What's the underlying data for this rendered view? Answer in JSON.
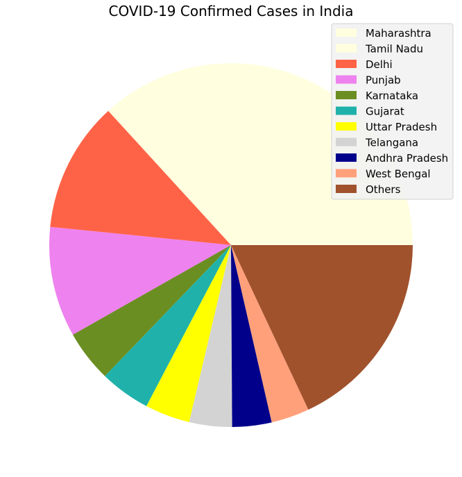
{
  "chart_data": {
    "type": "pie",
    "title": "COVID-19 Confirmed Cases in India",
    "legend_position": "top-right",
    "start_angle_deg": 0,
    "direction": "counterclockwise",
    "slices": [
      {
        "label": "Maharashtra",
        "value": 36.8,
        "color": "#FFFFE0"
      },
      {
        "label": "Tamil Nadu",
        "value": 0.0,
        "color": "#FFFFE0"
      },
      {
        "label": "Delhi",
        "value": 11.6,
        "color": "#FF6347"
      },
      {
        "label": "Punjab",
        "value": 9.8,
        "color": "#EE82EE"
      },
      {
        "label": "Karnataka",
        "value": 4.6,
        "color": "#6B8E23"
      },
      {
        "label": "Gujarat",
        "value": 4.5,
        "color": "#20B2AA"
      },
      {
        "label": "Uttar Pradesh",
        "value": 4.0,
        "color": "#FFFF00"
      },
      {
        "label": "Telangana",
        "value": 3.8,
        "color": "#D3D3D3"
      },
      {
        "label": "Andhra Pradesh",
        "value": 3.5,
        "color": "#00008B"
      },
      {
        "label": "West Bengal",
        "value": 3.4,
        "color": "#FFA07A"
      },
      {
        "label": "Others",
        "value": 18.0,
        "color": "#A0522D"
      }
    ]
  }
}
